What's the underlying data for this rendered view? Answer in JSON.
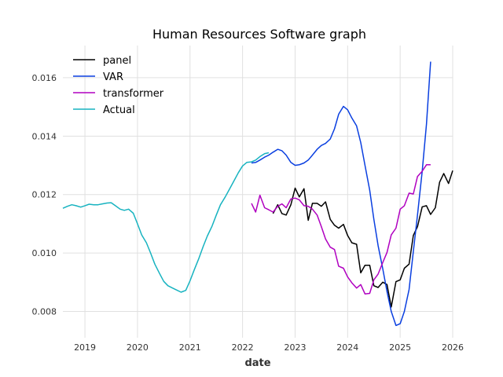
{
  "chart_data": {
    "type": "line",
    "title": "Human Resources Software graph",
    "xlabel": "date",
    "ylabel": "",
    "xlim": [
      2018.58,
      2026.0
    ],
    "ylim": [
      0.0071,
      0.0171
    ],
    "x_ticks": [
      2019,
      2020,
      2021,
      2022,
      2023,
      2024,
      2025,
      2026
    ],
    "x_tick_labels": [
      "2019",
      "2020",
      "2021",
      "2022",
      "2023",
      "2024",
      "2025",
      "2026"
    ],
    "y_ticks": [
      0.008,
      0.01,
      0.012,
      0.014,
      0.016
    ],
    "y_tick_labels": [
      "0.008",
      "0.010",
      "0.012",
      "0.014",
      "0.016"
    ],
    "grid": true,
    "legend_position": "top-left",
    "series": [
      {
        "name": "panel",
        "color": "#000000",
        "x": [
          2022.58,
          2022.67,
          2022.75,
          2022.83,
          2022.92,
          2023.0,
          2023.08,
          2023.17,
          2023.25,
          2023.33,
          2023.42,
          2023.5,
          2023.58,
          2023.67,
          2023.75,
          2023.83,
          2023.92,
          2024.0,
          2024.08,
          2024.17,
          2024.25,
          2024.33,
          2024.42,
          2024.5,
          2024.58,
          2024.67,
          2024.75,
          2024.83,
          2024.92,
          2025.0,
          2025.08,
          2025.17,
          2025.25,
          2025.33,
          2025.42,
          2025.5,
          2025.58,
          2025.67,
          2025.75,
          2025.83,
          2025.92,
          2026.0
        ],
        "y": [
          0.01135,
          0.01165,
          0.01135,
          0.0113,
          0.01165,
          0.01222,
          0.01192,
          0.0122,
          0.01112,
          0.0117,
          0.0117,
          0.0116,
          0.01175,
          0.01115,
          0.01095,
          0.01085,
          0.01098,
          0.0106,
          0.01035,
          0.0103,
          0.00932,
          0.00958,
          0.00958,
          0.00888,
          0.00882,
          0.009,
          0.00892,
          0.00815,
          0.00902,
          0.00908,
          0.00948,
          0.00962,
          0.0106,
          0.0109,
          0.01158,
          0.01162,
          0.01132,
          0.01155,
          0.01242,
          0.01272,
          0.01238,
          0.01282
        ]
      },
      {
        "name": "VAR",
        "color": "#0a3fe0",
        "x": [
          2022.17,
          2022.25,
          2022.33,
          2022.42,
          2022.5,
          2022.58,
          2022.67,
          2022.75,
          2022.83,
          2022.92,
          2023.0,
          2023.08,
          2023.17,
          2023.25,
          2023.33,
          2023.42,
          2023.5,
          2023.58,
          2023.67,
          2023.75,
          2023.83,
          2023.92,
          2024.0,
          2024.08,
          2024.17,
          2024.25,
          2024.33,
          2024.42,
          2024.5,
          2024.58,
          2024.67,
          2024.75,
          2024.83,
          2024.92,
          2025.0,
          2025.08,
          2025.17,
          2025.25,
          2025.33,
          2025.42,
          2025.5,
          2025.58
        ],
        "y": [
          0.01308,
          0.0131,
          0.01318,
          0.01328,
          0.01335,
          0.01345,
          0.01355,
          0.0135,
          0.01335,
          0.0131,
          0.013,
          0.01302,
          0.01308,
          0.01318,
          0.01335,
          0.01355,
          0.01368,
          0.01375,
          0.0139,
          0.01425,
          0.01475,
          0.01502,
          0.0149,
          0.01462,
          0.01435,
          0.01378,
          0.013,
          0.01215,
          0.01115,
          0.01025,
          0.00945,
          0.00868,
          0.008,
          0.00752,
          0.00758,
          0.008,
          0.00875,
          0.01005,
          0.0113,
          0.0128,
          0.0144,
          0.01655
        ]
      },
      {
        "name": "transformer",
        "color": "#b000c0",
        "x": [
          2022.17,
          2022.25,
          2022.33,
          2022.42,
          2022.5,
          2022.58,
          2022.67,
          2022.75,
          2022.83,
          2022.92,
          2023.0,
          2023.08,
          2023.17,
          2023.25,
          2023.33,
          2023.42,
          2023.5,
          2023.58,
          2023.67,
          2023.75,
          2023.83,
          2023.92,
          2024.0,
          2024.08,
          2024.17,
          2024.25,
          2024.33,
          2024.42,
          2024.5,
          2024.58,
          2024.67,
          2024.75,
          2024.83,
          2024.92,
          2025.0,
          2025.08,
          2025.17,
          2025.25,
          2025.33,
          2025.42,
          2025.5,
          2025.58
        ],
        "y": [
          0.0117,
          0.0114,
          0.01198,
          0.01155,
          0.01148,
          0.0114,
          0.0116,
          0.01168,
          0.01155,
          0.01185,
          0.01188,
          0.01182,
          0.01162,
          0.0116,
          0.0115,
          0.0113,
          0.0109,
          0.01048,
          0.0102,
          0.01012,
          0.00955,
          0.00948,
          0.00918,
          0.00898,
          0.0088,
          0.00892,
          0.0086,
          0.00862,
          0.00908,
          0.00928,
          0.00968,
          0.01002,
          0.01062,
          0.01085,
          0.0115,
          0.01162,
          0.01205,
          0.01202,
          0.01262,
          0.0128,
          0.01302,
          0.01302
        ]
      },
      {
        "name": "Actual",
        "color": "#17b3c0",
        "x": [
          2018.58,
          2018.67,
          2018.75,
          2018.83,
          2018.92,
          2019.0,
          2019.08,
          2019.17,
          2019.25,
          2019.33,
          2019.42,
          2019.5,
          2019.58,
          2019.67,
          2019.75,
          2019.83,
          2019.92,
          2020.0,
          2020.08,
          2020.17,
          2020.25,
          2020.33,
          2020.42,
          2020.5,
          2020.58,
          2020.67,
          2020.75,
          2020.83,
          2020.92,
          2021.0,
          2021.08,
          2021.17,
          2021.25,
          2021.33,
          2021.42,
          2021.5,
          2021.58,
          2021.67,
          2021.75,
          2021.83,
          2021.92,
          2022.0,
          2022.08,
          2022.17,
          2022.25,
          2022.33,
          2022.42,
          2022.5
        ],
        "y": [
          0.01153,
          0.0116,
          0.01165,
          0.01162,
          0.01157,
          0.01162,
          0.01167,
          0.01165,
          0.01165,
          0.01168,
          0.01171,
          0.01172,
          0.01162,
          0.0115,
          0.01146,
          0.0115,
          0.01136,
          0.011,
          0.01062,
          0.01035,
          0.01,
          0.00962,
          0.0093,
          0.00903,
          0.00888,
          0.0088,
          0.00873,
          0.00866,
          0.00872,
          0.00905,
          0.00942,
          0.00982,
          0.01022,
          0.01058,
          0.01092,
          0.0113,
          0.01165,
          0.01192,
          0.01218,
          0.01245,
          0.01275,
          0.01298,
          0.0131,
          0.01312,
          0.01318,
          0.0133,
          0.0134,
          0.01343
        ]
      }
    ]
  }
}
